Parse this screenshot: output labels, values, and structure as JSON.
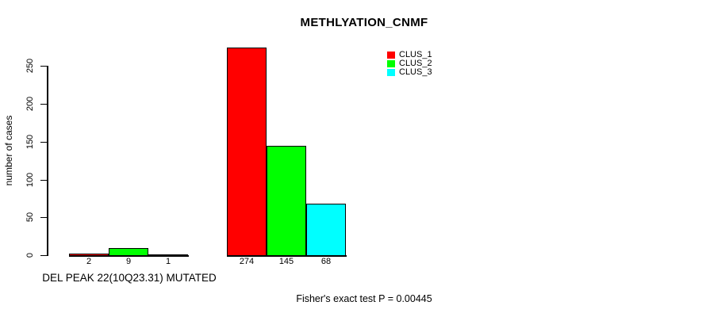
{
  "chart_data": {
    "type": "bar",
    "title": "METHLYATION_CNMF",
    "ylabel": "number of cases",
    "xlabel": "DEL PEAK 22(10Q23.31) MUTATED",
    "annotation": "Fisher's exact test P = 0.00445",
    "background": "#FFFFFF",
    "axis_color": "#000000",
    "grid": false,
    "legend_position": "top-right",
    "ylim": [
      0,
      275
    ],
    "yticks": [
      0,
      50,
      100,
      150,
      200,
      250
    ],
    "series": [
      {
        "name": "CLUS_1",
        "color": "#FF0000"
      },
      {
        "name": "CLUS_2",
        "color": "#00FF00"
      },
      {
        "name": "CLUS_3",
        "color": "#00FFFF"
      }
    ],
    "groups": [
      {
        "values": [
          2,
          9,
          1
        ],
        "bar_labels": [
          "2",
          "9",
          "1"
        ]
      },
      {
        "values": [
          274,
          145,
          68
        ],
        "bar_labels": [
          "274",
          "145",
          "68"
        ]
      }
    ]
  }
}
